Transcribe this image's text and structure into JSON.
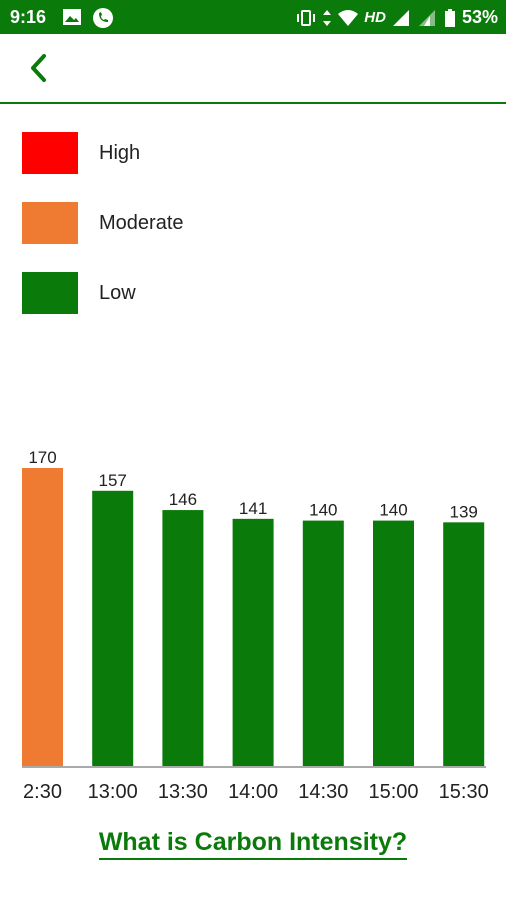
{
  "status_bar": {
    "time": "9:16",
    "network_label": "HD",
    "battery": "53%",
    "icons": [
      "image-icon",
      "phone-icon",
      "vibrate-icon",
      "data-arrows-icon",
      "wifi-icon",
      "signal-icon",
      "signal-2-icon",
      "battery-icon"
    ]
  },
  "app_bar": {
    "back_icon": "chevron-left-icon"
  },
  "colors": {
    "brand_green": "#0a7a0a",
    "high": "#ff0000",
    "moderate": "#ef7a32",
    "low": "#0a7a0a"
  },
  "legend": [
    {
      "label": "High",
      "color": "#ff0000"
    },
    {
      "label": "Moderate",
      "color": "#ef7a32"
    },
    {
      "label": "Low",
      "color": "#0a7a0a"
    }
  ],
  "chart_data": {
    "type": "bar",
    "categories": [
      "2:30",
      "13:00",
      "13:30",
      "14:00",
      "14:30",
      "15:00",
      "15:30"
    ],
    "values": [
      170,
      157,
      146,
      141,
      140,
      140,
      139
    ],
    "value_labels": [
      "170",
      "157",
      "146",
      "141",
      "140",
      "140",
      "139"
    ],
    "bar_levels": [
      "Moderate",
      "Low",
      "Low",
      "Low",
      "Low",
      "Low",
      "Low"
    ],
    "ylim": [
      0,
      170
    ],
    "title": "",
    "xlabel": "",
    "ylabel": "",
    "grid": false
  },
  "info_link": {
    "label": "What is Carbon Intensity?"
  }
}
